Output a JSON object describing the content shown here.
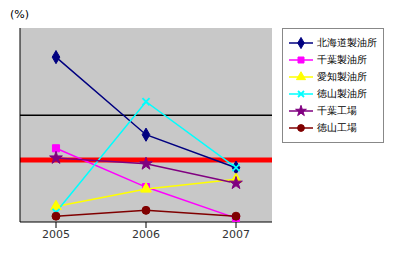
{
  "chart_data": {
    "type": "line",
    "title": "",
    "ylabel": "(%)",
    "x": [
      2005,
      2006,
      2007
    ],
    "xlim": [
      2004.6,
      2007.4
    ],
    "xticks": [
      2005,
      2006,
      2007
    ],
    "ylim": [
      0,
      100
    ],
    "grid": false,
    "legend": "right",
    "tick_labels": "x",
    "series": [
      {
        "name": "北海道製油所",
        "color": "#000080",
        "marker": "diamond",
        "values": [
          85,
          45,
          28
        ]
      },
      {
        "name": "千葉製油所",
        "color": "#ff00ff",
        "marker": "square",
        "values": [
          38,
          18,
          2
        ]
      },
      {
        "name": "愛知製油所",
        "color": "#ffff00",
        "marker": "triangle",
        "values": [
          8,
          17,
          22
        ]
      },
      {
        "name": "徳山製油所",
        "color": "#00ffff",
        "marker": "x",
        "values": [
          5,
          62,
          28
        ]
      },
      {
        "name": "千葉工場",
        "color": "#800080",
        "marker": "star",
        "values": [
          33,
          30,
          20
        ]
      },
      {
        "name": "徳山工場",
        "color": "#800000",
        "marker": "circle",
        "values": [
          3,
          6,
          3
        ]
      }
    ],
    "hlines": [
      {
        "y": 55,
        "color": "#000000"
      },
      {
        "y": 32,
        "color": "#ff0000"
      }
    ]
  }
}
